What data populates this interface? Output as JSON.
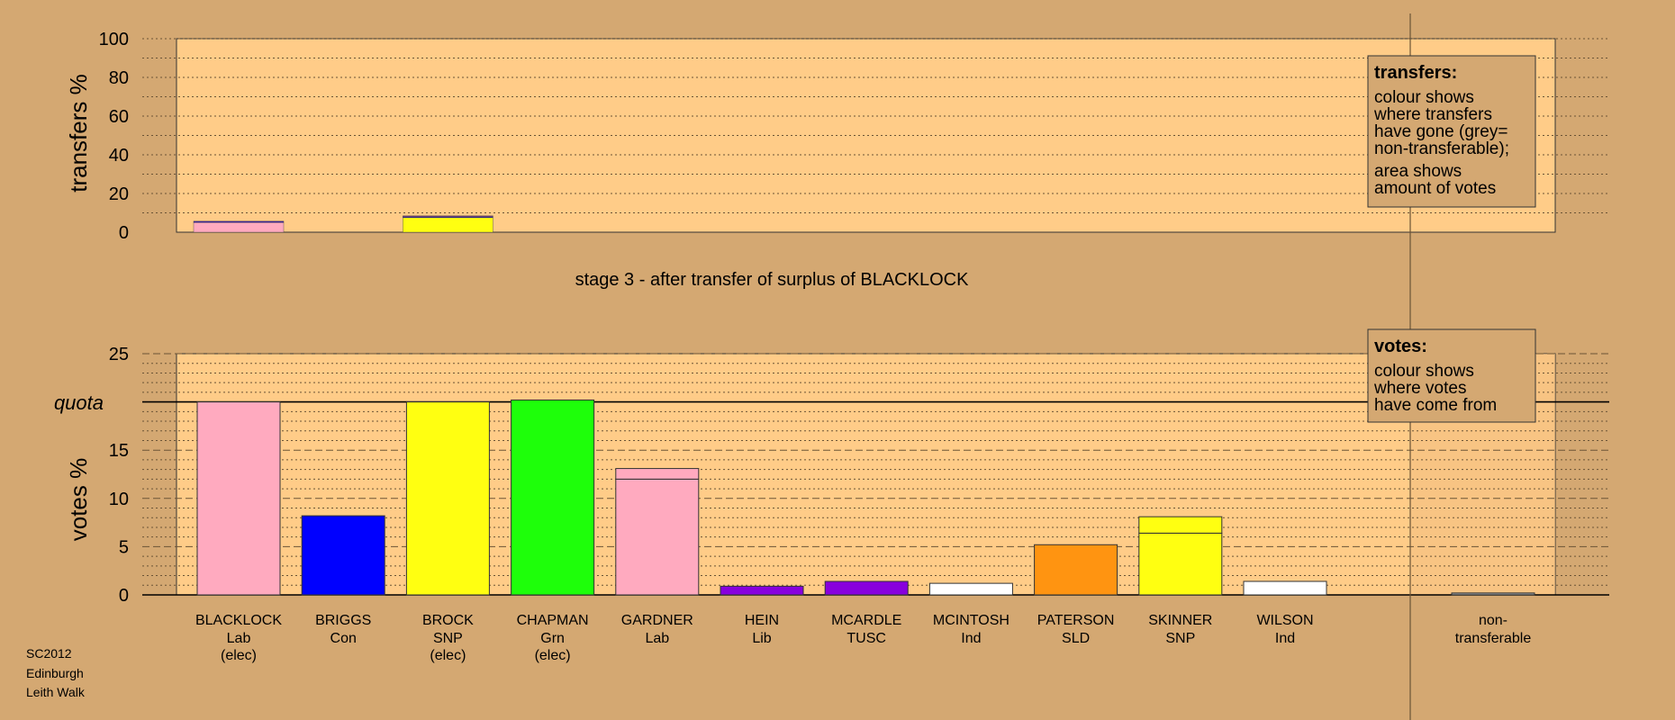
{
  "colors": {
    "background": "#D4A872",
    "plot_bg": "#FFCC88",
    "Lab": "#FFAABF",
    "Con": "#0000FF",
    "SNP": "#FFFF11",
    "Grn": "#1EFF0A",
    "Lib": "#8800DD",
    "TUSC": "#8800DD",
    "Ind": "#FFFFFF",
    "SLD": "#FF9411",
    "NT": "#999999"
  },
  "chart_data": [
    {
      "type": "bar",
      "stacked": true,
      "ylabel": "transfers %",
      "ylim": [
        0,
        100
      ],
      "yticks": [
        "0",
        "20",
        "40",
        "60",
        "80",
        "100"
      ],
      "grid": true,
      "bars": [
        {
          "candidate": "BLACKLOCK",
          "segments": [
            {
              "party": "Lab",
              "value": 5.0
            },
            {
              "party": "Con",
              "value": 0.4
            },
            {
              "party": "Lib",
              "value": 0.3
            }
          ]
        },
        {
          "candidate": "BROCK",
          "segments": [
            {
              "party": "SNP",
              "value": 7.5
            },
            {
              "party": "Con",
              "value": 0.4
            },
            {
              "party": "Lib",
              "value": 0.3
            },
            {
              "party": "Lab",
              "value": 0.3
            }
          ]
        }
      ],
      "legend": {
        "position": "top-right",
        "title": "transfers:",
        "lines1": [
          "colour shows",
          "where transfers",
          "have gone (grey=",
          "non-transferable);"
        ],
        "lines2": [
          "area shows",
          "amount of votes"
        ]
      }
    },
    {
      "type": "bar",
      "stacked": true,
      "title": "stage 3 - after transfer of surplus of BLACKLOCK",
      "ylabel": "votes %",
      "ylim": [
        0,
        25
      ],
      "yticks": [
        "0",
        "5",
        "10",
        "15",
        "20",
        "25"
      ],
      "quota_label": "quota",
      "quota": 20,
      "grid": true,
      "categories": [
        {
          "name": "BLACKLOCK",
          "party": "Lab",
          "note": "(elec)"
        },
        {
          "name": "BRIGGS",
          "party": "Con",
          "note": ""
        },
        {
          "name": "BROCK",
          "party": "SNP",
          "note": "(elec)"
        },
        {
          "name": "CHAPMAN",
          "party": "Grn",
          "note": "(elec)"
        },
        {
          "name": "GARDNER",
          "party": "Lab",
          "note": ""
        },
        {
          "name": "HEIN",
          "party": "Lib",
          "note": ""
        },
        {
          "name": "MCARDLE",
          "party": "TUSC",
          "note": ""
        },
        {
          "name": "MCINTOSH",
          "party": "Ind",
          "note": ""
        },
        {
          "name": "PATERSON",
          "party": "SLD",
          "note": ""
        },
        {
          "name": "SKINNER",
          "party": "SNP",
          "note": ""
        },
        {
          "name": "WILSON",
          "party": "Ind",
          "note": ""
        }
      ],
      "nontransferable": {
        "label": [
          "non-",
          "transferable"
        ],
        "value": 0.2
      },
      "bars": [
        [
          {
            "party": "Lab",
            "value": 20.0
          }
        ],
        [
          {
            "party": "Con",
            "value": 8.2
          }
        ],
        [
          {
            "party": "SNP",
            "value": 20.0
          }
        ],
        [
          {
            "party": "Grn",
            "value": 20.2
          }
        ],
        [
          {
            "party": "Lab",
            "value": 12.0
          },
          {
            "party": "Lab",
            "value": 1.1
          }
        ],
        [
          {
            "party": "Lib",
            "value": 0.9
          }
        ],
        [
          {
            "party": "TUSC",
            "value": 1.4
          }
        ],
        [
          {
            "party": "Ind",
            "value": 1.2
          }
        ],
        [
          {
            "party": "SLD",
            "value": 5.2
          }
        ],
        [
          {
            "party": "SNP",
            "value": 6.4
          },
          {
            "party": "SNP",
            "value": 1.7
          }
        ],
        [
          {
            "party": "Ind",
            "value": 1.4
          }
        ]
      ],
      "legend": {
        "position": "top-right",
        "title": "votes:",
        "lines1": [
          "colour shows",
          "where votes",
          "have come from"
        ]
      }
    }
  ],
  "footer": {
    "lines": [
      "SC2012",
      "Edinburgh",
      "Leith Walk"
    ]
  }
}
